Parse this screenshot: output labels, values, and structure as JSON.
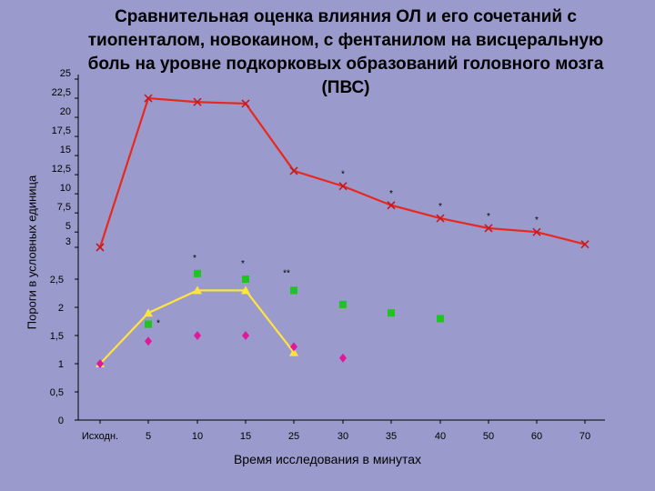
{
  "chart_data": {
    "type": "line",
    "title": "Сравнительная оценка влияния ОЛ и его сочетаний с тиопенталом, новокаином, с фентанилом на висцеральную боль на уровне подкорковых образований головного мозга (ПВС)",
    "xlabel": "Время исследования в минутах",
    "ylabel": "Пороги в условных единица",
    "categories": [
      "Исходн.",
      "5",
      "10",
      "15",
      "25",
      "30",
      "35",
      "40",
      "50",
      "60",
      "70"
    ],
    "upper_axis": {
      "ylim": [
        3,
        25
      ],
      "ticks": [
        "25",
        "22,5",
        "20",
        "17,5",
        "15",
        "12,5",
        "10",
        "7,5",
        "5",
        "3"
      ]
    },
    "lower_axis": {
      "ylim": [
        0,
        3
      ],
      "ticks": [
        "2,5",
        "2",
        "1,5",
        "1",
        "0,5",
        "0"
      ]
    },
    "series": [
      {
        "axis": "upper",
        "marker": "x",
        "color": "#e8281e",
        "values": [
          3,
          22.5,
          22,
          21.8,
          13,
          11,
          8.5,
          6.8,
          5.5,
          5,
          3.4
        ],
        "annotations": [
          "",
          "",
          "",
          "",
          "",
          "*",
          "*",
          "*",
          "*",
          "*",
          ""
        ]
      },
      {
        "axis": "lower",
        "marker": "triangle",
        "color": "#ffe340",
        "values": [
          1,
          1.9,
          2.3,
          2.3,
          1.2,
          null,
          null,
          null,
          null,
          null,
          null
        ]
      },
      {
        "axis": "lower",
        "marker": "square",
        "color": "#1fc41f",
        "values": [
          null,
          1.7,
          2.6,
          2.5,
          2.3,
          2.05,
          1.9,
          1.8,
          null,
          null,
          null
        ],
        "annotations": [
          "",
          "*",
          "*",
          "*",
          "**",
          "",
          "",
          "",
          "",
          "",
          ""
        ]
      },
      {
        "axis": "lower",
        "marker": "diamond",
        "color": "#e0199a",
        "values": [
          1,
          1.4,
          1.5,
          1.5,
          1.3,
          1.1,
          null,
          null,
          null,
          null,
          null
        ]
      }
    ],
    "grid": false
  }
}
